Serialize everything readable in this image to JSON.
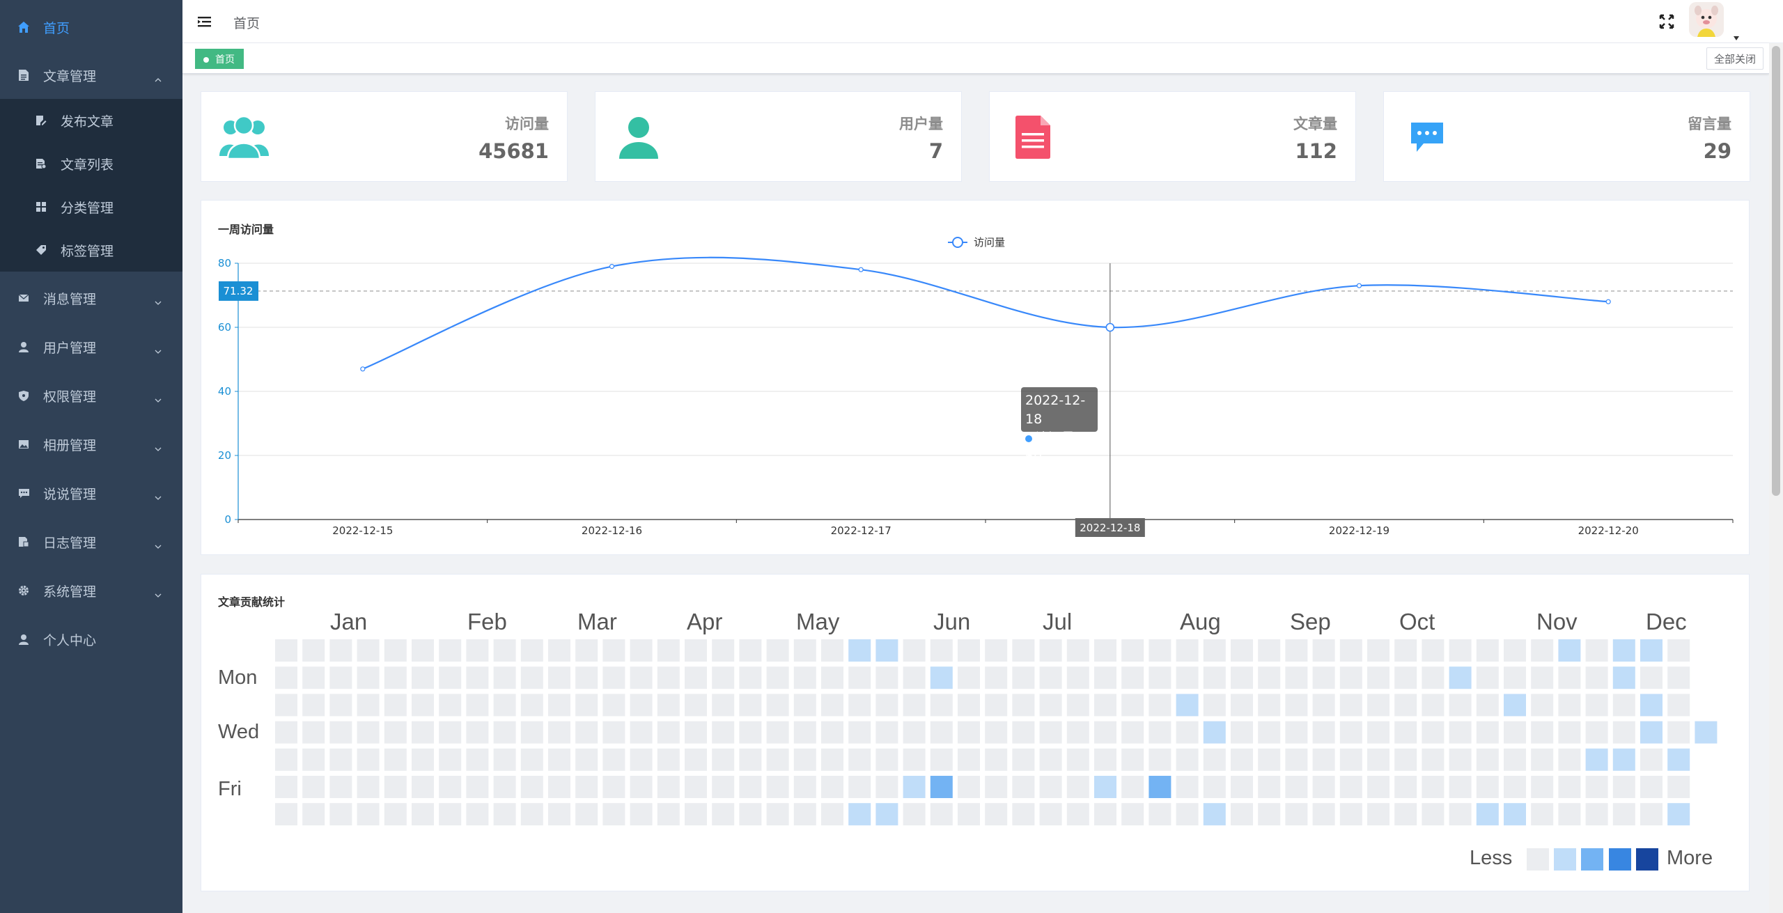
{
  "sidebar": {
    "items": [
      {
        "label": "首页",
        "icon": "home-icon",
        "active": true
      },
      {
        "label": "文章管理",
        "icon": "document-icon",
        "expanded": true,
        "children": [
          {
            "label": "发布文章",
            "icon": "edit-icon"
          },
          {
            "label": "文章列表",
            "icon": "list-icon"
          },
          {
            "label": "分类管理",
            "icon": "grid-icon"
          },
          {
            "label": "标签管理",
            "icon": "tag-icon"
          }
        ]
      },
      {
        "label": "消息管理",
        "icon": "mail-icon"
      },
      {
        "label": "用户管理",
        "icon": "user-icon"
      },
      {
        "label": "权限管理",
        "icon": "shield-icon"
      },
      {
        "label": "相册管理",
        "icon": "image-icon"
      },
      {
        "label": "说说管理",
        "icon": "chat-icon"
      },
      {
        "label": "日志管理",
        "icon": "log-icon"
      },
      {
        "label": "系统管理",
        "icon": "gear-icon"
      },
      {
        "label": "个人中心",
        "icon": "person-icon"
      }
    ],
    "bg_color": "#304156",
    "active_color": "#409eff"
  },
  "navbar": {
    "breadcrumb": "首页",
    "icons": [
      "hamburger-icon",
      "fullscreen-icon",
      "avatar",
      "caret-down-icon"
    ]
  },
  "tags": {
    "active": "首页",
    "close_all": "全部关闭"
  },
  "stats": [
    {
      "label": "访问量",
      "value": "45681",
      "icon": "users-icon",
      "color": "#40c9c6"
    },
    {
      "label": "用户量",
      "value": "7",
      "icon": "user-icon",
      "color": "#34bfa3"
    },
    {
      "label": "文章量",
      "value": "112",
      "icon": "document-icon",
      "color": "#f4516c"
    },
    {
      "label": "留言量",
      "value": "29",
      "icon": "message-icon",
      "color": "#36a3f7"
    }
  ],
  "weekly": {
    "title": "一周访问量",
    "tooltip_date": "2022-12-18",
    "tooltip_series": "访问量",
    "tooltip_value": "60",
    "axis_pointer_label": "2022-12-18",
    "mark_line_label": "71.32"
  },
  "chart_data": {
    "type": "line",
    "title": "一周访问量",
    "categories": [
      "2022-12-15",
      "2022-12-16",
      "2022-12-17",
      "2022-12-18",
      "2022-12-19",
      "2022-12-20"
    ],
    "series": [
      {
        "name": "访问量",
        "values": [
          47,
          79,
          78,
          60,
          73,
          68
        ],
        "color": "#3888fa",
        "smooth": true
      }
    ],
    "ylim": [
      0,
      80
    ],
    "yticks": [
      0,
      20,
      40,
      60,
      80
    ],
    "mark_line": 71.32,
    "legend": "top-center",
    "grid": true
  },
  "heatmap": {
    "title": "文章贡献统计",
    "months": [
      "Jan",
      "Feb",
      "Mar",
      "Apr",
      "May",
      "Jun",
      "Jul",
      "Aug",
      "Sep",
      "Oct",
      "Nov",
      "Dec"
    ],
    "days": [
      "Mon",
      "Wed",
      "Fri"
    ],
    "legend_less": "Less",
    "legend_more": "More",
    "colors": [
      "#ebedf0",
      "#c0ddf9",
      "#73b3f3",
      "#3886e1",
      "#17459e"
    ],
    "active_cells": [
      {
        "week": 21,
        "day": 0,
        "level": 1
      },
      {
        "week": 22,
        "day": 0,
        "level": 1
      },
      {
        "week": 47,
        "day": 0,
        "level": 1
      },
      {
        "week": 49,
        "day": 0,
        "level": 1
      },
      {
        "week": 50,
        "day": 0,
        "level": 1
      },
      {
        "week": 24,
        "day": 1,
        "level": 1
      },
      {
        "week": 43,
        "day": 1,
        "level": 1
      },
      {
        "week": 49,
        "day": 1,
        "level": 1
      },
      {
        "week": 33,
        "day": 2,
        "level": 1
      },
      {
        "week": 45,
        "day": 2,
        "level": 1
      },
      {
        "week": 50,
        "day": 2,
        "level": 1
      },
      {
        "week": 34,
        "day": 3,
        "level": 1
      },
      {
        "week": 50,
        "day": 3,
        "level": 1
      },
      {
        "week": 52,
        "day": 3,
        "level": 1
      },
      {
        "week": 48,
        "day": 4,
        "level": 1
      },
      {
        "week": 49,
        "day": 4,
        "level": 1
      },
      {
        "week": 51,
        "day": 4,
        "level": 1
      },
      {
        "week": 23,
        "day": 5,
        "level": 1
      },
      {
        "week": 24,
        "day": 5,
        "level": 2
      },
      {
        "week": 30,
        "day": 5,
        "level": 1
      },
      {
        "week": 32,
        "day": 5,
        "level": 2
      },
      {
        "week": 21,
        "day": 6,
        "level": 1
      },
      {
        "week": 22,
        "day": 6,
        "level": 1
      },
      {
        "week": 34,
        "day": 6,
        "level": 1
      },
      {
        "week": 44,
        "day": 6,
        "level": 1
      },
      {
        "week": 45,
        "day": 6,
        "level": 1
      },
      {
        "week": 51,
        "day": 6,
        "level": 1
      }
    ]
  }
}
